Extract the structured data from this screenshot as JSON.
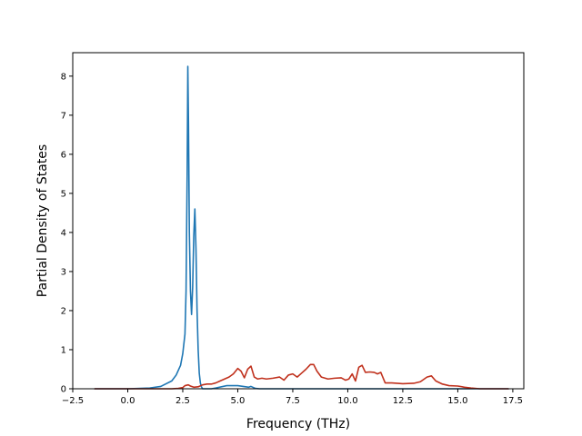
{
  "chart_data": {
    "type": "line",
    "title": "",
    "xlabel": "Frequency (THz)",
    "ylabel": "Partial Density of States",
    "xlim": [
      -2.5,
      18.0
    ],
    "ylim": [
      0,
      8.6
    ],
    "xticks": [
      -2.5,
      0.0,
      2.5,
      5.0,
      7.5,
      10.0,
      12.5,
      15.0,
      17.5
    ],
    "xtick_labels": [
      "−2.5",
      "0.0",
      "2.5",
      "5.0",
      "7.5",
      "10.0",
      "12.5",
      "15.0",
      "17.5"
    ],
    "yticks": [
      0,
      1,
      2,
      3,
      4,
      5,
      6,
      7,
      8
    ],
    "ytick_labels": [
      "0",
      "1",
      "2",
      "3",
      "4",
      "5",
      "6",
      "7",
      "8"
    ],
    "grid": false,
    "legend": "none",
    "series": [
      {
        "color": "#1f77b4",
        "x": [
          -1.5,
          0.0,
          1.0,
          1.5,
          2.0,
          2.2,
          2.4,
          2.5,
          2.6,
          2.65,
          2.7,
          2.73,
          2.76,
          2.8,
          2.85,
          2.9,
          2.95,
          3.0,
          3.05,
          3.1,
          3.15,
          3.2,
          3.25,
          3.3,
          3.35,
          3.4,
          3.5,
          3.8,
          4.0,
          4.5,
          5.0,
          5.5,
          5.6,
          5.8,
          6.0,
          7.0,
          10.0,
          15.0,
          17.3
        ],
        "y": [
          0.0,
          0.0,
          0.02,
          0.06,
          0.2,
          0.35,
          0.6,
          0.9,
          1.4,
          2.5,
          5.5,
          8.25,
          6.8,
          4.0,
          2.5,
          1.9,
          2.6,
          3.9,
          4.6,
          3.6,
          2.0,
          1.0,
          0.4,
          0.15,
          0.05,
          0.0,
          0.0,
          0.0,
          0.02,
          0.08,
          0.08,
          0.04,
          0.06,
          0.01,
          0.0,
          0.0,
          0.0,
          0.0,
          0.0
        ]
      },
      {
        "color": "#c0311d",
        "x": [
          -1.5,
          0.0,
          1.0,
          2.0,
          2.3,
          2.5,
          2.6,
          2.75,
          2.85,
          3.0,
          3.2,
          3.4,
          3.6,
          3.8,
          4.0,
          4.2,
          4.4,
          4.6,
          4.8,
          5.0,
          5.15,
          5.3,
          5.45,
          5.6,
          5.75,
          5.9,
          6.1,
          6.3,
          6.6,
          6.9,
          7.1,
          7.3,
          7.5,
          7.7,
          7.9,
          8.1,
          8.3,
          8.45,
          8.6,
          8.8,
          9.1,
          9.4,
          9.7,
          9.9,
          10.05,
          10.2,
          10.35,
          10.5,
          10.65,
          10.8,
          11.0,
          11.2,
          11.35,
          11.5,
          11.7,
          12.0,
          12.5,
          13.0,
          13.3,
          13.6,
          13.8,
          14.0,
          14.3,
          14.6,
          15.0,
          15.3,
          15.6,
          16.0,
          17.3
        ],
        "y": [
          0.0,
          0.0,
          0.0,
          0.0,
          0.01,
          0.03,
          0.08,
          0.1,
          0.07,
          0.04,
          0.05,
          0.1,
          0.12,
          0.12,
          0.15,
          0.2,
          0.25,
          0.3,
          0.38,
          0.52,
          0.45,
          0.28,
          0.5,
          0.58,
          0.3,
          0.25,
          0.27,
          0.25,
          0.27,
          0.3,
          0.22,
          0.35,
          0.38,
          0.3,
          0.4,
          0.5,
          0.62,
          0.62,
          0.45,
          0.3,
          0.25,
          0.27,
          0.28,
          0.22,
          0.25,
          0.38,
          0.2,
          0.55,
          0.6,
          0.42,
          0.43,
          0.42,
          0.38,
          0.42,
          0.15,
          0.15,
          0.13,
          0.14,
          0.18,
          0.3,
          0.33,
          0.2,
          0.12,
          0.08,
          0.07,
          0.04,
          0.02,
          0.0,
          0.0
        ]
      }
    ]
  }
}
